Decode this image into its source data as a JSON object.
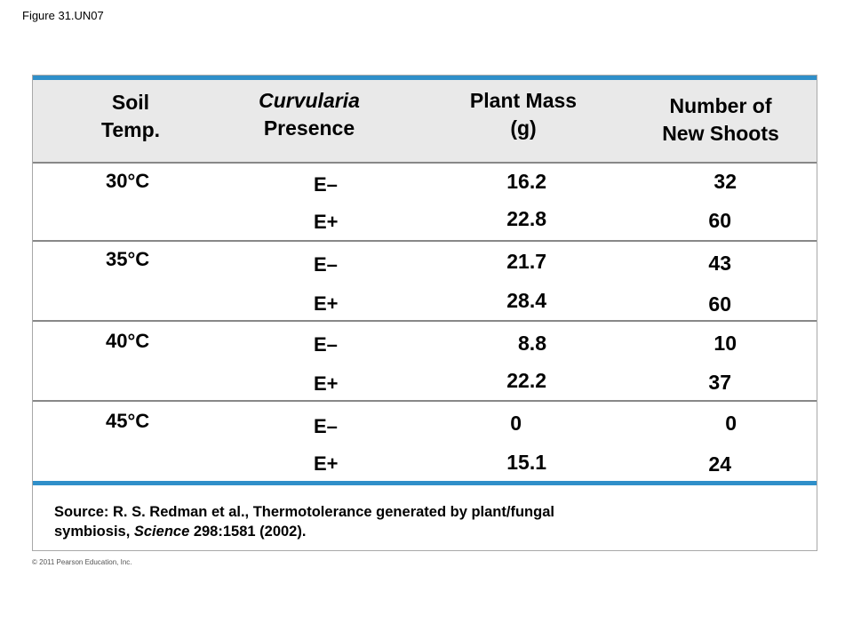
{
  "figure_label": "Figure 31.UN07",
  "table": {
    "headers": {
      "temp": [
        "Soil",
        "Temp."
      ],
      "curvularia": [
        "Curvularia",
        "Presence"
      ],
      "mass": [
        "Plant Mass",
        "(g)"
      ],
      "shoots": [
        "Number of",
        "New Shoots"
      ]
    },
    "groups": [
      {
        "temp": "30°C",
        "rows": [
          {
            "presence": "E–",
            "mass": "16.2",
            "shoots": "32"
          },
          {
            "presence": "E+",
            "mass": "22.8",
            "shoots": "60"
          }
        ]
      },
      {
        "temp": "35°C",
        "rows": [
          {
            "presence": "E–",
            "mass": "21.7",
            "shoots": "43"
          },
          {
            "presence": "E+",
            "mass": "28.4",
            "shoots": "60"
          }
        ]
      },
      {
        "temp": "40°C",
        "rows": [
          {
            "presence": "E–",
            "mass": "8.8",
            "shoots": "10"
          },
          {
            "presence": "E+",
            "mass": "22.2",
            "shoots": "37"
          }
        ]
      },
      {
        "temp": "45°C",
        "rows": [
          {
            "presence": "E–",
            "mass": "0",
            "shoots": "0"
          },
          {
            "presence": "E+",
            "mass": "15.1",
            "shoots": "24"
          }
        ]
      }
    ]
  },
  "source": {
    "prefix": "Source: R. S. Redman et al., Thermotolerance generated by plant/fungal",
    "line2_pre": "symbiosis, ",
    "journal": "Science",
    "line2_post": " 298:1581 (2002)."
  },
  "copyright": "© 2011 Pearson Education, Inc.",
  "colors": {
    "accent_bar": "#2f8fc9",
    "header_bg": "#e9e9e9"
  }
}
